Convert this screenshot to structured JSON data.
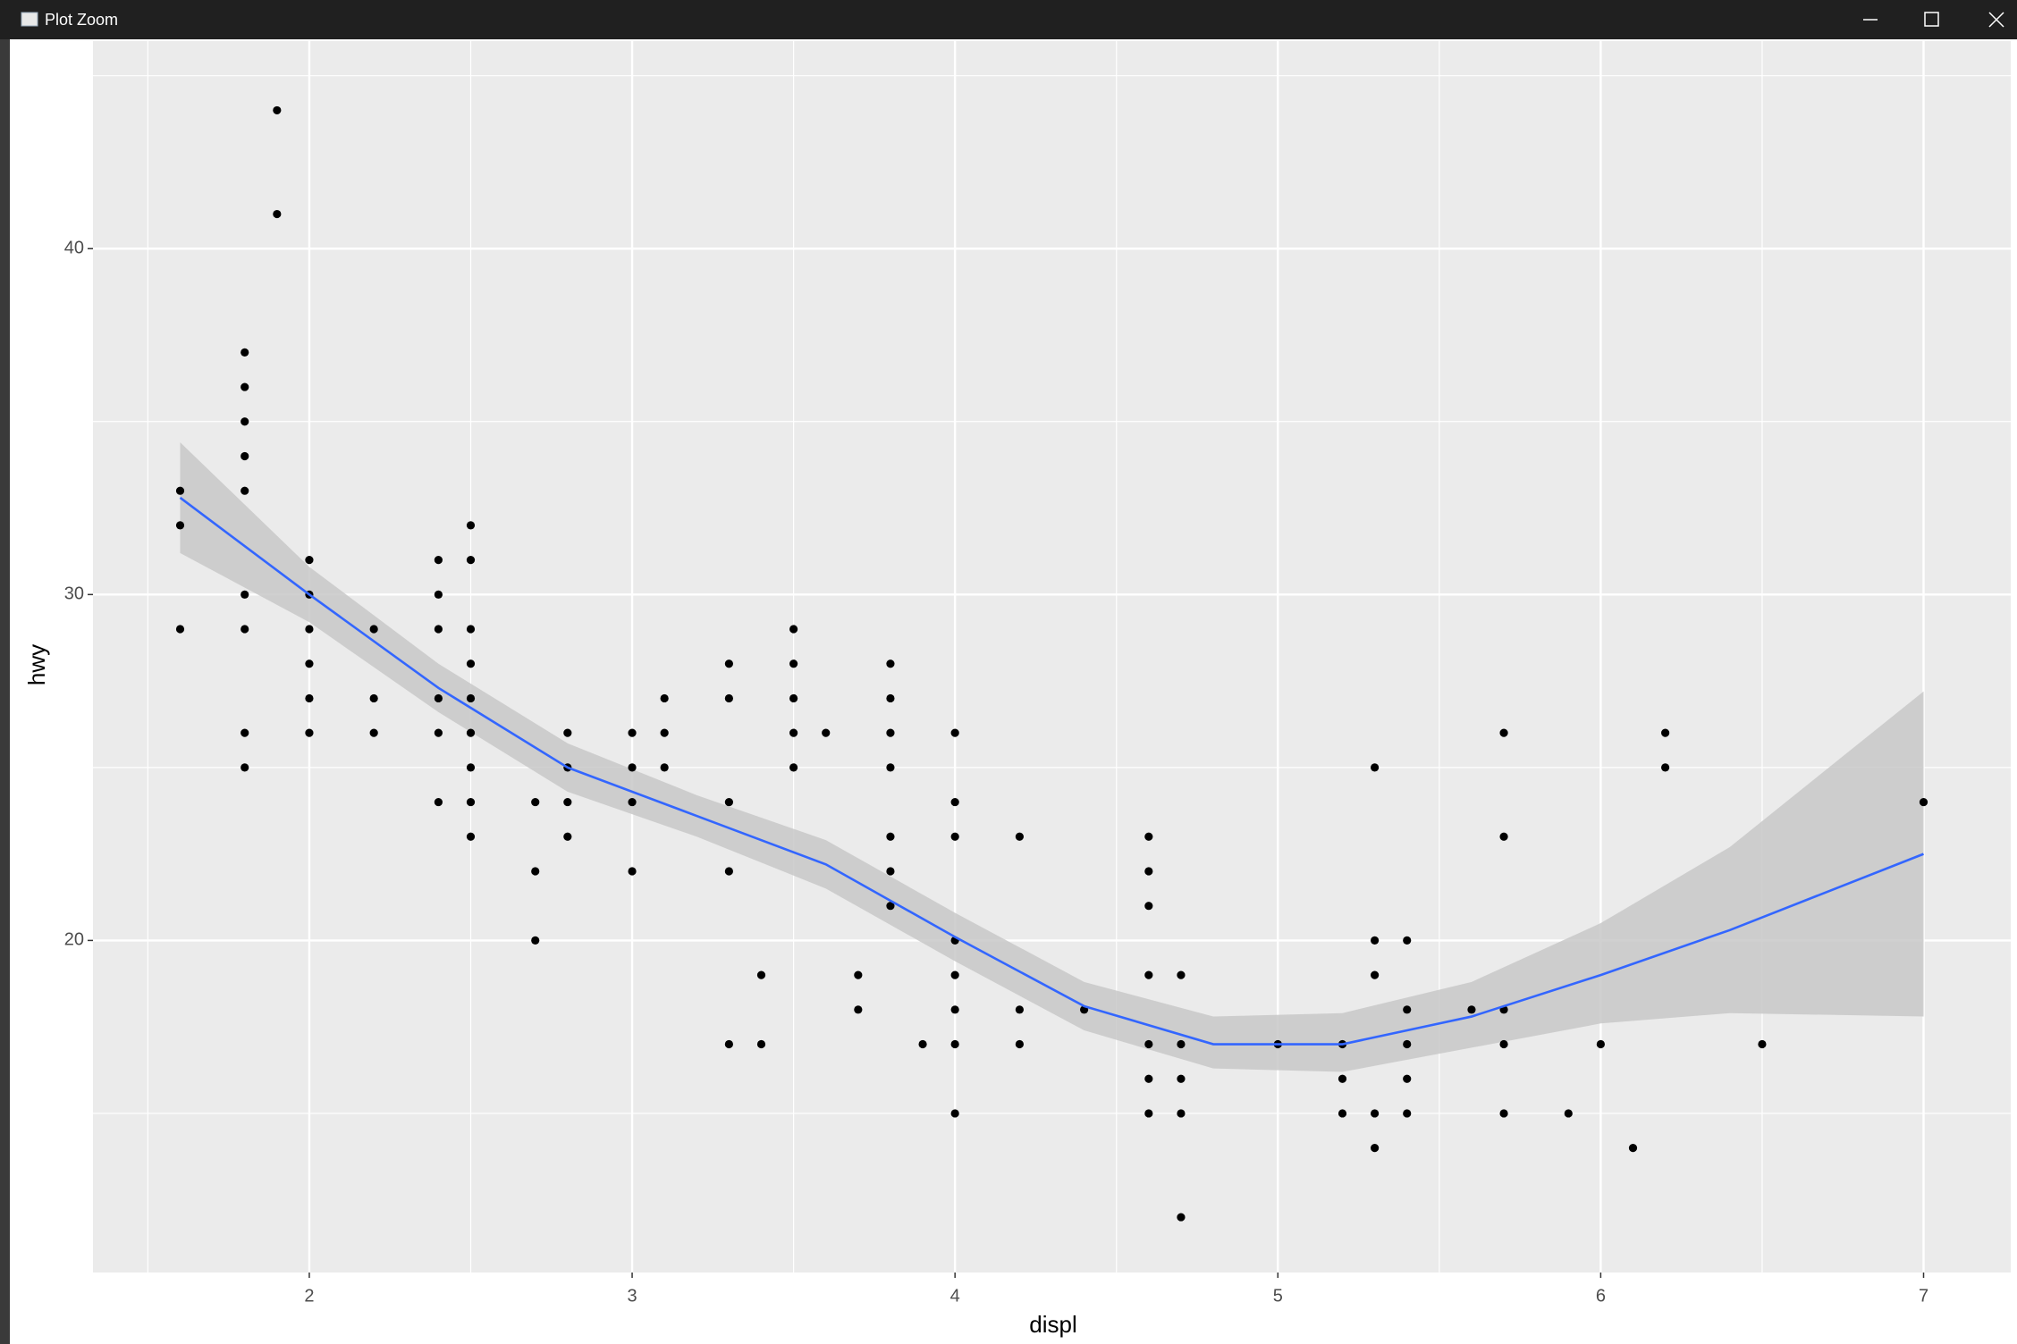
{
  "window": {
    "title": "Plot Zoom"
  },
  "chart_data": {
    "type": "scatter",
    "x_label": "displ",
    "y_label": "hwy",
    "xlim": [
      1.33,
      7.27
    ],
    "ylim": [
      10.4,
      46
    ],
    "xticks": [
      2,
      3,
      4,
      5,
      6,
      7
    ],
    "yticks": [
      20,
      30,
      40
    ],
    "x_minor_grid": [
      1.5,
      2.5,
      3.5,
      4.5,
      5.5,
      6.5
    ],
    "y_minor_grid": [
      15,
      25,
      35,
      45
    ],
    "grid": true,
    "point_color": "#000000",
    "points": {
      "x": [
        1.6,
        1.6,
        1.6,
        1.8,
        1.8,
        1.8,
        1.8,
        1.8,
        1.8,
        1.8,
        1.8,
        1.8,
        1.9,
        1.9,
        2.0,
        2.0,
        2.0,
        2.0,
        2.0,
        2.0,
        2.2,
        2.2,
        2.2,
        2.4,
        2.4,
        2.4,
        2.4,
        2.4,
        2.4,
        2.5,
        2.5,
        2.5,
        2.5,
        2.5,
        2.5,
        2.5,
        2.5,
        2.5,
        2.7,
        2.7,
        2.7,
        2.8,
        2.8,
        2.8,
        2.8,
        3.0,
        3.0,
        3.0,
        3.0,
        3.1,
        3.1,
        3.1,
        3.3,
        3.3,
        3.3,
        3.3,
        3.3,
        3.4,
        3.4,
        3.5,
        3.5,
        3.5,
        3.5,
        3.5,
        3.6,
        3.7,
        3.7,
        3.8,
        3.8,
        3.8,
        3.8,
        3.8,
        3.8,
        3.8,
        3.9,
        4.0,
        4.0,
        4.0,
        4.0,
        4.0,
        4.0,
        4.0,
        4.0,
        4.2,
        4.2,
        4.2,
        4.4,
        4.6,
        4.6,
        4.6,
        4.6,
        4.6,
        4.6,
        4.6,
        4.7,
        4.7,
        4.7,
        4.7,
        4.7,
        5.0,
        5.2,
        5.2,
        5.2,
        5.3,
        5.3,
        5.3,
        5.3,
        5.3,
        5.4,
        5.4,
        5.4,
        5.4,
        5.4,
        5.6,
        5.7,
        5.7,
        5.7,
        5.7,
        5.7,
        5.9,
        6.0,
        6.1,
        6.2,
        6.2,
        6.5,
        7.0
      ],
      "y": [
        33,
        32,
        29,
        37,
        36,
        35,
        34,
        33,
        30,
        29,
        26,
        25,
        44,
        41,
        31,
        30,
        29,
        28,
        27,
        26,
        29,
        27,
        26,
        31,
        30,
        29,
        27,
        26,
        24,
        32,
        31,
        29,
        28,
        27,
        26,
        25,
        24,
        23,
        24,
        22,
        20,
        26,
        25,
        24,
        23,
        26,
        25,
        24,
        22,
        27,
        26,
        25,
        28,
        27,
        24,
        22,
        17,
        19,
        17,
        29,
        28,
        27,
        26,
        25,
        26,
        19,
        18,
        28,
        27,
        26,
        25,
        23,
        22,
        21,
        17,
        26,
        24,
        23,
        20,
        19,
        18,
        17,
        15,
        23,
        18,
        17,
        18,
        23,
        22,
        21,
        19,
        17,
        16,
        15,
        19,
        17,
        16,
        15,
        12,
        17,
        17,
        16,
        15,
        25,
        20,
        19,
        15,
        14,
        20,
        18,
        17,
        16,
        15,
        18,
        26,
        23,
        18,
        17,
        15,
        15,
        17,
        14,
        26,
        25,
        17,
        24
      ]
    },
    "smooth": {
      "color": "#3366ff",
      "band_color": "#c8c8c8",
      "x": [
        1.6,
        2.0,
        2.4,
        2.8,
        3.2,
        3.6,
        4.0,
        4.4,
        4.8,
        5.2,
        5.6,
        6.0,
        6.4,
        7.0
      ],
      "y": [
        32.8,
        30.0,
        27.3,
        25.0,
        23.6,
        22.2,
        20.1,
        18.1,
        17.0,
        17.0,
        17.8,
        19.0,
        20.3,
        22.5
      ],
      "lower": [
        31.2,
        29.2,
        26.6,
        24.3,
        23.0,
        21.5,
        19.4,
        17.4,
        16.3,
        16.2,
        16.9,
        17.6,
        17.9,
        17.8
      ],
      "upper": [
        34.4,
        30.8,
        28.0,
        25.7,
        24.2,
        22.9,
        20.8,
        18.8,
        17.8,
        17.9,
        18.8,
        20.5,
        22.7,
        27.2
      ]
    }
  }
}
